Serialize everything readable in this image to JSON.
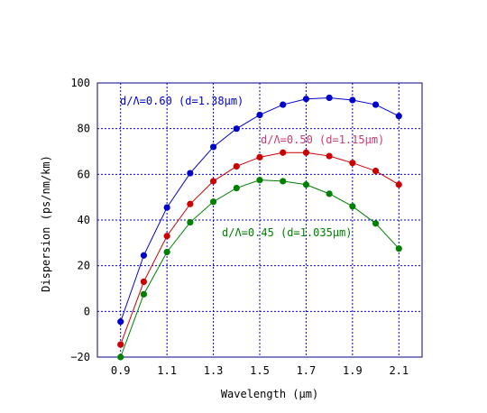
{
  "chart_data": {
    "type": "line",
    "xlabel": "Wavelength (μm)",
    "ylabel": "Dispersion (ps/nm/km)",
    "xlim": [
      0.8,
      2.2
    ],
    "ylim": [
      -20,
      100
    ],
    "xticks": [
      0.9,
      1.1,
      1.3,
      1.5,
      1.7,
      1.9,
      2.1
    ],
    "xtick_labels": [
      "0.9",
      "1.1",
      "1.3",
      "1.5",
      "1.7",
      "1.9",
      "2.1"
    ],
    "yticks": [
      -20,
      0,
      20,
      40,
      60,
      80,
      100
    ],
    "ytick_labels": [
      "−20",
      "0",
      "20",
      "40",
      "60",
      "80",
      "100"
    ],
    "grid": true,
    "x": [
      0.9,
      1.0,
      1.1,
      1.2,
      1.3,
      1.4,
      1.5,
      1.6,
      1.7,
      1.8,
      1.9,
      2.0,
      2.1
    ],
    "series": [
      {
        "annotation": "d/Λ=0.60 (d=1.38μm)",
        "color": "#0000cc",
        "values": [
          -4.5,
          24.5,
          45.5,
          60.5,
          72,
          80,
          86,
          90.5,
          93,
          93.5,
          92.5,
          90.5,
          85.5
        ]
      },
      {
        "annotation": "d/Λ=0.50 (d=1.15μm)",
        "color": "#cc0000",
        "values": [
          -14.5,
          13,
          33,
          47,
          57,
          63.5,
          67.5,
          69.5,
          69.5,
          68,
          65,
          61.5,
          55.5
        ]
      },
      {
        "annotation": "d/Λ=0.45 (d=1.035μm)",
        "color": "#008000",
        "values": [
          -20,
          7.5,
          26,
          39,
          48,
          54,
          57.5,
          57,
          55.5,
          51.5,
          46,
          38.5,
          27.5
        ]
      }
    ],
    "annotation_colors": [
      "#0000cc",
      "#c83c6e",
      "#008000"
    ]
  }
}
